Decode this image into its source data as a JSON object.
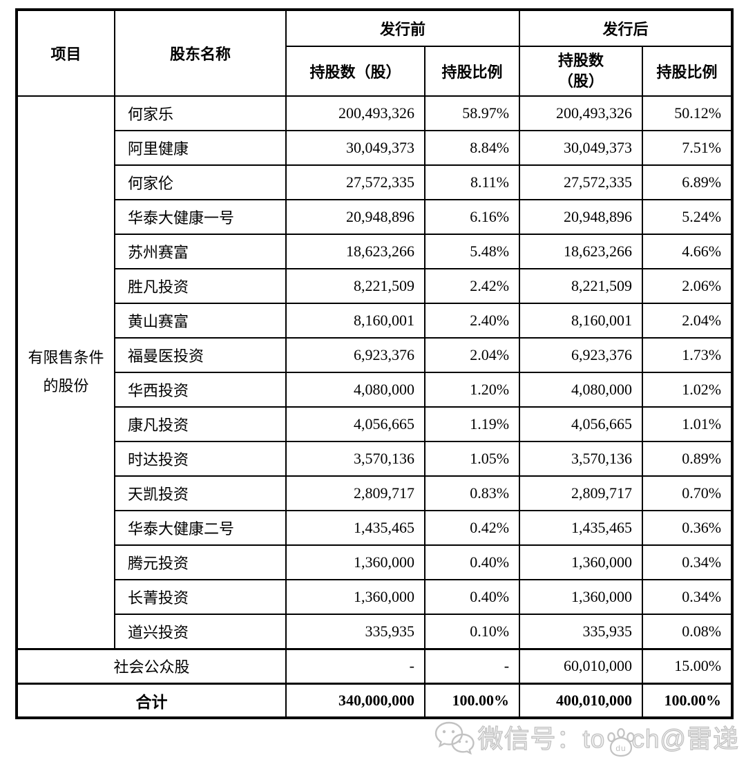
{
  "table": {
    "header": {
      "col_item": "项目",
      "col_shareholder": "股东名称",
      "group_before": "发行前",
      "group_after": "发行后",
      "col_shares_before": "持股数（股）",
      "col_ratio_before": "持股比例",
      "col_shares_after_line1": "持股数",
      "col_shares_after_line2": "（股）",
      "col_ratio_after": "持股比例"
    },
    "row_group_label": "有限售条件的股份",
    "rows": [
      {
        "name": "何家乐",
        "shares_before": "200,493,326",
        "ratio_before": "58.97%",
        "shares_after": "200,493,326",
        "ratio_after": "50.12%"
      },
      {
        "name": "阿里健康",
        "shares_before": "30,049,373",
        "ratio_before": "8.84%",
        "shares_after": "30,049,373",
        "ratio_after": "7.51%"
      },
      {
        "name": "何家伦",
        "shares_before": "27,572,335",
        "ratio_before": "8.11%",
        "shares_after": "27,572,335",
        "ratio_after": "6.89%"
      },
      {
        "name": "华泰大健康一号",
        "shares_before": "20,948,896",
        "ratio_before": "6.16%",
        "shares_after": "20,948,896",
        "ratio_after": "5.24%"
      },
      {
        "name": "苏州赛富",
        "shares_before": "18,623,266",
        "ratio_before": "5.48%",
        "shares_after": "18,623,266",
        "ratio_after": "4.66%"
      },
      {
        "name": "胜凡投资",
        "shares_before": "8,221,509",
        "ratio_before": "2.42%",
        "shares_after": "8,221,509",
        "ratio_after": "2.06%"
      },
      {
        "name": "黄山赛富",
        "shares_before": "8,160,001",
        "ratio_before": "2.40%",
        "shares_after": "8,160,001",
        "ratio_after": "2.04%"
      },
      {
        "name": "福曼医投资",
        "shares_before": "6,923,376",
        "ratio_before": "2.04%",
        "shares_after": "6,923,376",
        "ratio_after": "1.73%"
      },
      {
        "name": "华西投资",
        "shares_before": "4,080,000",
        "ratio_before": "1.20%",
        "shares_after": "4,080,000",
        "ratio_after": "1.02%"
      },
      {
        "name": "康凡投资",
        "shares_before": "4,056,665",
        "ratio_before": "1.19%",
        "shares_after": "4,056,665",
        "ratio_after": "1.01%"
      },
      {
        "name": "时达投资",
        "shares_before": "3,570,136",
        "ratio_before": "1.05%",
        "shares_after": "3,570,136",
        "ratio_after": "0.89%"
      },
      {
        "name": "天凯投资",
        "shares_before": "2,809,717",
        "ratio_before": "0.83%",
        "shares_after": "2,809,717",
        "ratio_after": "0.70%"
      },
      {
        "name": "华泰大健康二号",
        "shares_before": "1,435,465",
        "ratio_before": "0.42%",
        "shares_after": "1,435,465",
        "ratio_after": "0.36%"
      },
      {
        "name": "腾元投资",
        "shares_before": "1,360,000",
        "ratio_before": "0.40%",
        "shares_after": "1,360,000",
        "ratio_after": "0.34%"
      },
      {
        "name": "长菁投资",
        "shares_before": "1,360,000",
        "ratio_before": "0.40%",
        "shares_after": "1,360,000",
        "ratio_after": "0.34%"
      },
      {
        "name": "道兴投资",
        "shares_before": "335,935",
        "ratio_before": "0.10%",
        "shares_after": "335,935",
        "ratio_after": "0.08%"
      }
    ],
    "public_row": {
      "label": "社会公众股",
      "shares_before": "-",
      "ratio_before": "-",
      "shares_after": "60,010,000",
      "ratio_after": "15.00%"
    },
    "total_row": {
      "label": "合计",
      "shares_before": "340,000,000",
      "ratio_before": "100.00%",
      "shares_after": "400,010,000",
      "ratio_after": "100.00%"
    }
  },
  "watermark": {
    "text_left": "微信号：to",
    "paw_label": "du",
    "text_right": "ch@雷递"
  },
  "colors": {
    "border": "#000000",
    "text": "#000000",
    "watermark": "#c2c2c2",
    "background": "#ffffff"
  }
}
